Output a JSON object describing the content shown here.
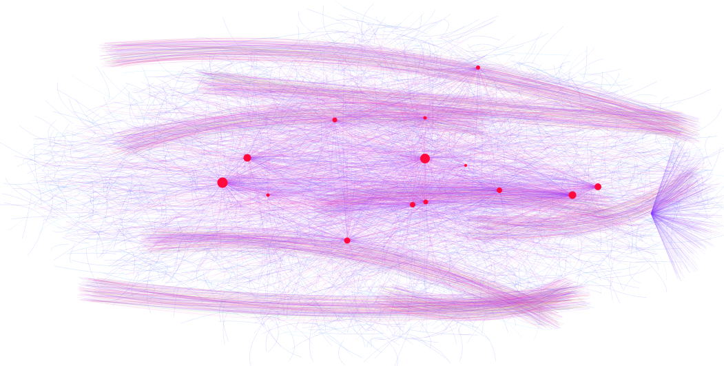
{
  "graph": {
    "background": "#ffffff",
    "edge_palette": [
      "#2f6bff",
      "#6a3cff",
      "#b040ff",
      "#ff2fb0",
      "#59c7ff",
      "#f5d06a",
      "#9be08a"
    ],
    "node_color": "#ff0a3c",
    "hub_count": 14
  }
}
